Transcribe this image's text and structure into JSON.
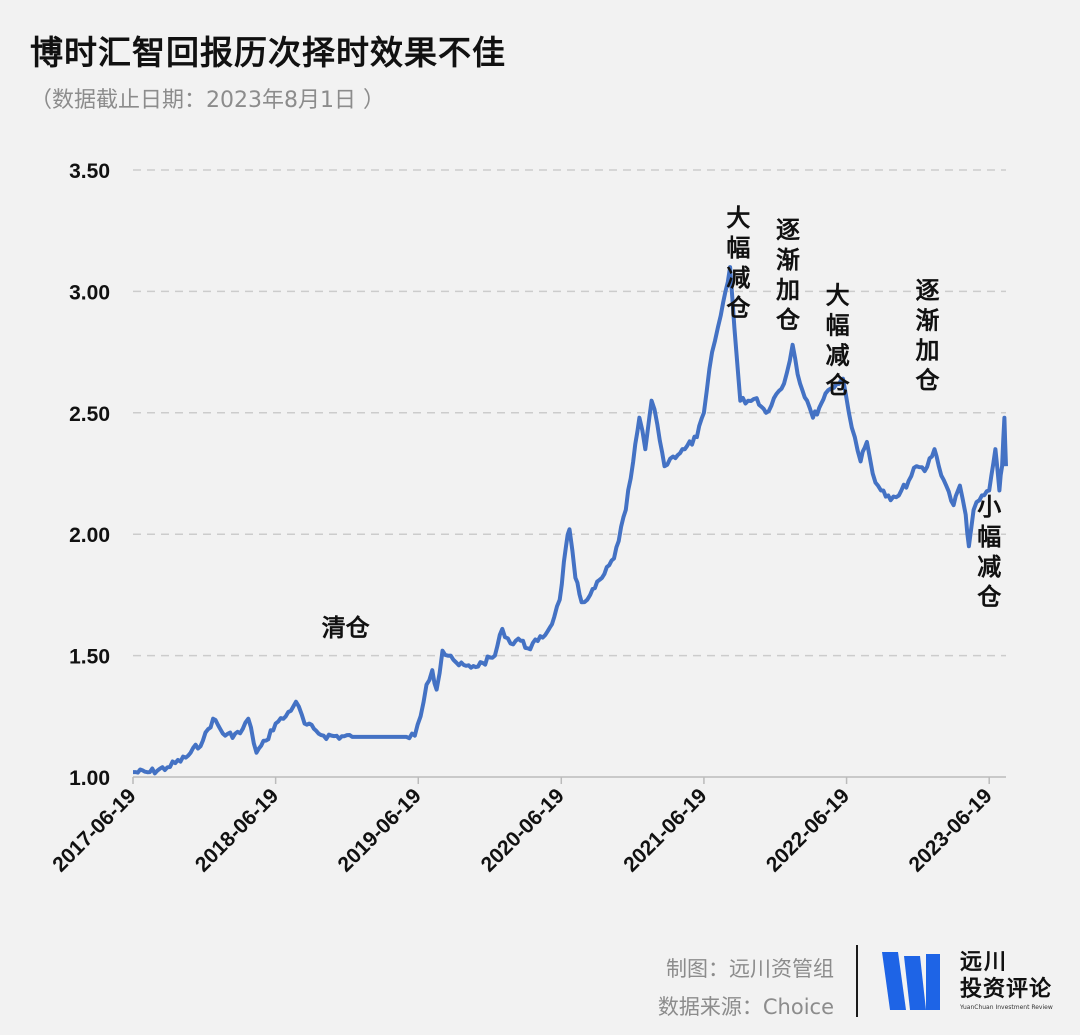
{
  "header": {
    "title": "博时汇智回报历次择时效果不佳",
    "subtitle": "（数据截止日期：2023年8月1日 ）"
  },
  "footer": {
    "credit_line1": "制图：远川资管组",
    "credit_line2": "数据来源：Choice",
    "logo_line1": "远川",
    "logo_line2": "投资评论",
    "logo_line3": "YuanChuan Investment Review"
  },
  "colors": {
    "line": "#4472c4",
    "grid": "#cccccc",
    "background": "#f2f2f2",
    "logo_blue": "#1e64e6"
  },
  "chart_data": {
    "type": "line",
    "title": "博时汇智回报历次择时效果不佳",
    "xlabel": "",
    "ylabel": "",
    "ylim": [
      1.0,
      3.5
    ],
    "yticks": [
      "1.00",
      "1.50",
      "2.00",
      "2.50",
      "3.00",
      "3.50"
    ],
    "xticks": [
      "2017-06-19",
      "2018-06-19",
      "2019-06-19",
      "2020-06-19",
      "2021-06-19",
      "2022-06-19",
      "2023-06-19"
    ],
    "grid": true,
    "series": [
      {
        "values": [
          [
            "2017-06-19",
            1.02
          ],
          [
            "2017-08-01",
            1.02
          ],
          [
            "2017-09-15",
            1.04
          ],
          [
            "2017-11-01",
            1.08
          ],
          [
            "2017-12-15",
            1.15
          ],
          [
            "2018-01-10",
            1.24
          ],
          [
            "2018-02-10",
            1.17
          ],
          [
            "2018-03-20",
            1.18
          ],
          [
            "2018-04-10",
            1.24
          ],
          [
            "2018-05-01",
            1.1
          ],
          [
            "2018-05-25",
            1.15
          ],
          [
            "2018-06-19",
            1.22
          ],
          [
            "2018-07-15",
            1.25
          ],
          [
            "2018-08-10",
            1.31
          ],
          [
            "2018-09-01",
            1.22
          ],
          [
            "2018-10-01",
            1.19
          ],
          [
            "2018-10-20",
            1.17
          ],
          [
            "2019-01-01",
            1.165
          ],
          [
            "2019-04-01",
            1.165
          ],
          [
            "2019-05-20",
            1.165
          ],
          [
            "2019-06-10",
            1.17
          ],
          [
            "2019-06-25",
            1.25
          ],
          [
            "2019-07-10",
            1.38
          ],
          [
            "2019-07-25",
            1.44
          ],
          [
            "2019-08-05",
            1.36
          ],
          [
            "2019-08-20",
            1.52
          ],
          [
            "2019-09-10",
            1.5
          ],
          [
            "2019-10-01",
            1.46
          ],
          [
            "2019-11-01",
            1.45
          ],
          [
            "2019-12-01",
            1.47
          ],
          [
            "2020-01-01",
            1.5
          ],
          [
            "2020-01-20",
            1.61
          ],
          [
            "2020-02-10",
            1.55
          ],
          [
            "2020-03-01",
            1.57
          ],
          [
            "2020-03-25",
            1.53
          ],
          [
            "2020-04-20",
            1.56
          ],
          [
            "2020-05-15",
            1.6
          ],
          [
            "2020-06-01",
            1.66
          ],
          [
            "2020-06-15",
            1.73
          ],
          [
            "2020-07-01",
            1.95
          ],
          [
            "2020-07-10",
            2.02
          ],
          [
            "2020-07-25",
            1.82
          ],
          [
            "2020-08-10",
            1.72
          ],
          [
            "2020-09-01",
            1.75
          ],
          [
            "2020-10-01",
            1.82
          ],
          [
            "2020-11-01",
            1.9
          ],
          [
            "2020-12-01",
            2.1
          ],
          [
            "2020-12-20",
            2.3
          ],
          [
            "2021-01-05",
            2.48
          ],
          [
            "2021-01-20",
            2.35
          ],
          [
            "2021-02-05",
            2.55
          ],
          [
            "2021-02-20",
            2.45
          ],
          [
            "2021-03-10",
            2.28
          ],
          [
            "2021-04-01",
            2.32
          ],
          [
            "2021-05-01",
            2.35
          ],
          [
            "2021-06-01",
            2.4
          ],
          [
            "2021-06-19",
            2.5
          ],
          [
            "2021-07-10",
            2.75
          ],
          [
            "2021-08-01",
            2.9
          ],
          [
            "2021-08-25",
            3.1
          ],
          [
            "2021-09-05",
            2.85
          ],
          [
            "2021-09-20",
            2.55
          ],
          [
            "2021-10-10",
            2.55
          ],
          [
            "2021-11-01",
            2.56
          ],
          [
            "2021-11-25",
            2.5
          ],
          [
            "2021-12-15",
            2.56
          ],
          [
            "2022-01-10",
            2.62
          ],
          [
            "2022-02-01",
            2.78
          ],
          [
            "2022-02-20",
            2.62
          ],
          [
            "2022-03-10",
            2.55
          ],
          [
            "2022-03-25",
            2.48
          ],
          [
            "2022-04-10",
            2.52
          ],
          [
            "2022-04-26",
            2.58
          ],
          [
            "2022-05-10",
            2.6
          ],
          [
            "2022-05-25",
            2.62
          ],
          [
            "2022-06-10",
            2.64
          ],
          [
            "2022-06-25",
            2.5
          ],
          [
            "2022-07-10",
            2.4
          ],
          [
            "2022-07-25",
            2.3
          ],
          [
            "2022-08-10",
            2.38
          ],
          [
            "2022-08-25",
            2.25
          ],
          [
            "2022-09-15",
            2.18
          ],
          [
            "2022-10-10",
            2.14
          ],
          [
            "2022-10-31",
            2.16
          ],
          [
            "2022-11-25",
            2.22
          ],
          [
            "2022-12-15",
            2.28
          ],
          [
            "2023-01-05",
            2.26
          ],
          [
            "2023-01-30",
            2.35
          ],
          [
            "2023-02-10",
            2.28
          ],
          [
            "2023-03-01",
            2.2
          ],
          [
            "2023-03-20",
            2.12
          ],
          [
            "2023-04-05",
            2.2
          ],
          [
            "2023-04-20",
            2.08
          ],
          [
            "2023-04-28",
            1.95
          ],
          [
            "2023-05-10",
            2.1
          ],
          [
            "2023-05-25",
            2.14
          ],
          [
            "2023-06-19",
            2.18
          ],
          [
            "2023-07-05",
            2.35
          ],
          [
            "2023-07-15",
            2.18
          ],
          [
            "2023-07-22",
            2.28
          ],
          [
            "2023-07-28",
            2.48
          ],
          [
            "2023-08-01",
            2.28
          ]
        ]
      }
    ],
    "annotations": [
      {
        "text": "清仓",
        "x": "2018-12-15",
        "y": 1.58,
        "orientation": "horizontal"
      },
      {
        "text": "大幅减仓",
        "x": "2021-09-15",
        "y": 3.27,
        "orientation": "vertical"
      },
      {
        "text": "逐渐加仓",
        "x": "2022-01-20",
        "y": 3.22,
        "orientation": "vertical"
      },
      {
        "text": "大幅减仓",
        "x": "2022-05-27",
        "y": 2.95,
        "orientation": "vertical"
      },
      {
        "text": "逐渐加仓",
        "x": "2023-01-12",
        "y": 2.97,
        "orientation": "vertical"
      },
      {
        "text": "小幅减仓",
        "x": "2023-06-19",
        "y": 2.08,
        "orientation": "vertical"
      }
    ]
  }
}
